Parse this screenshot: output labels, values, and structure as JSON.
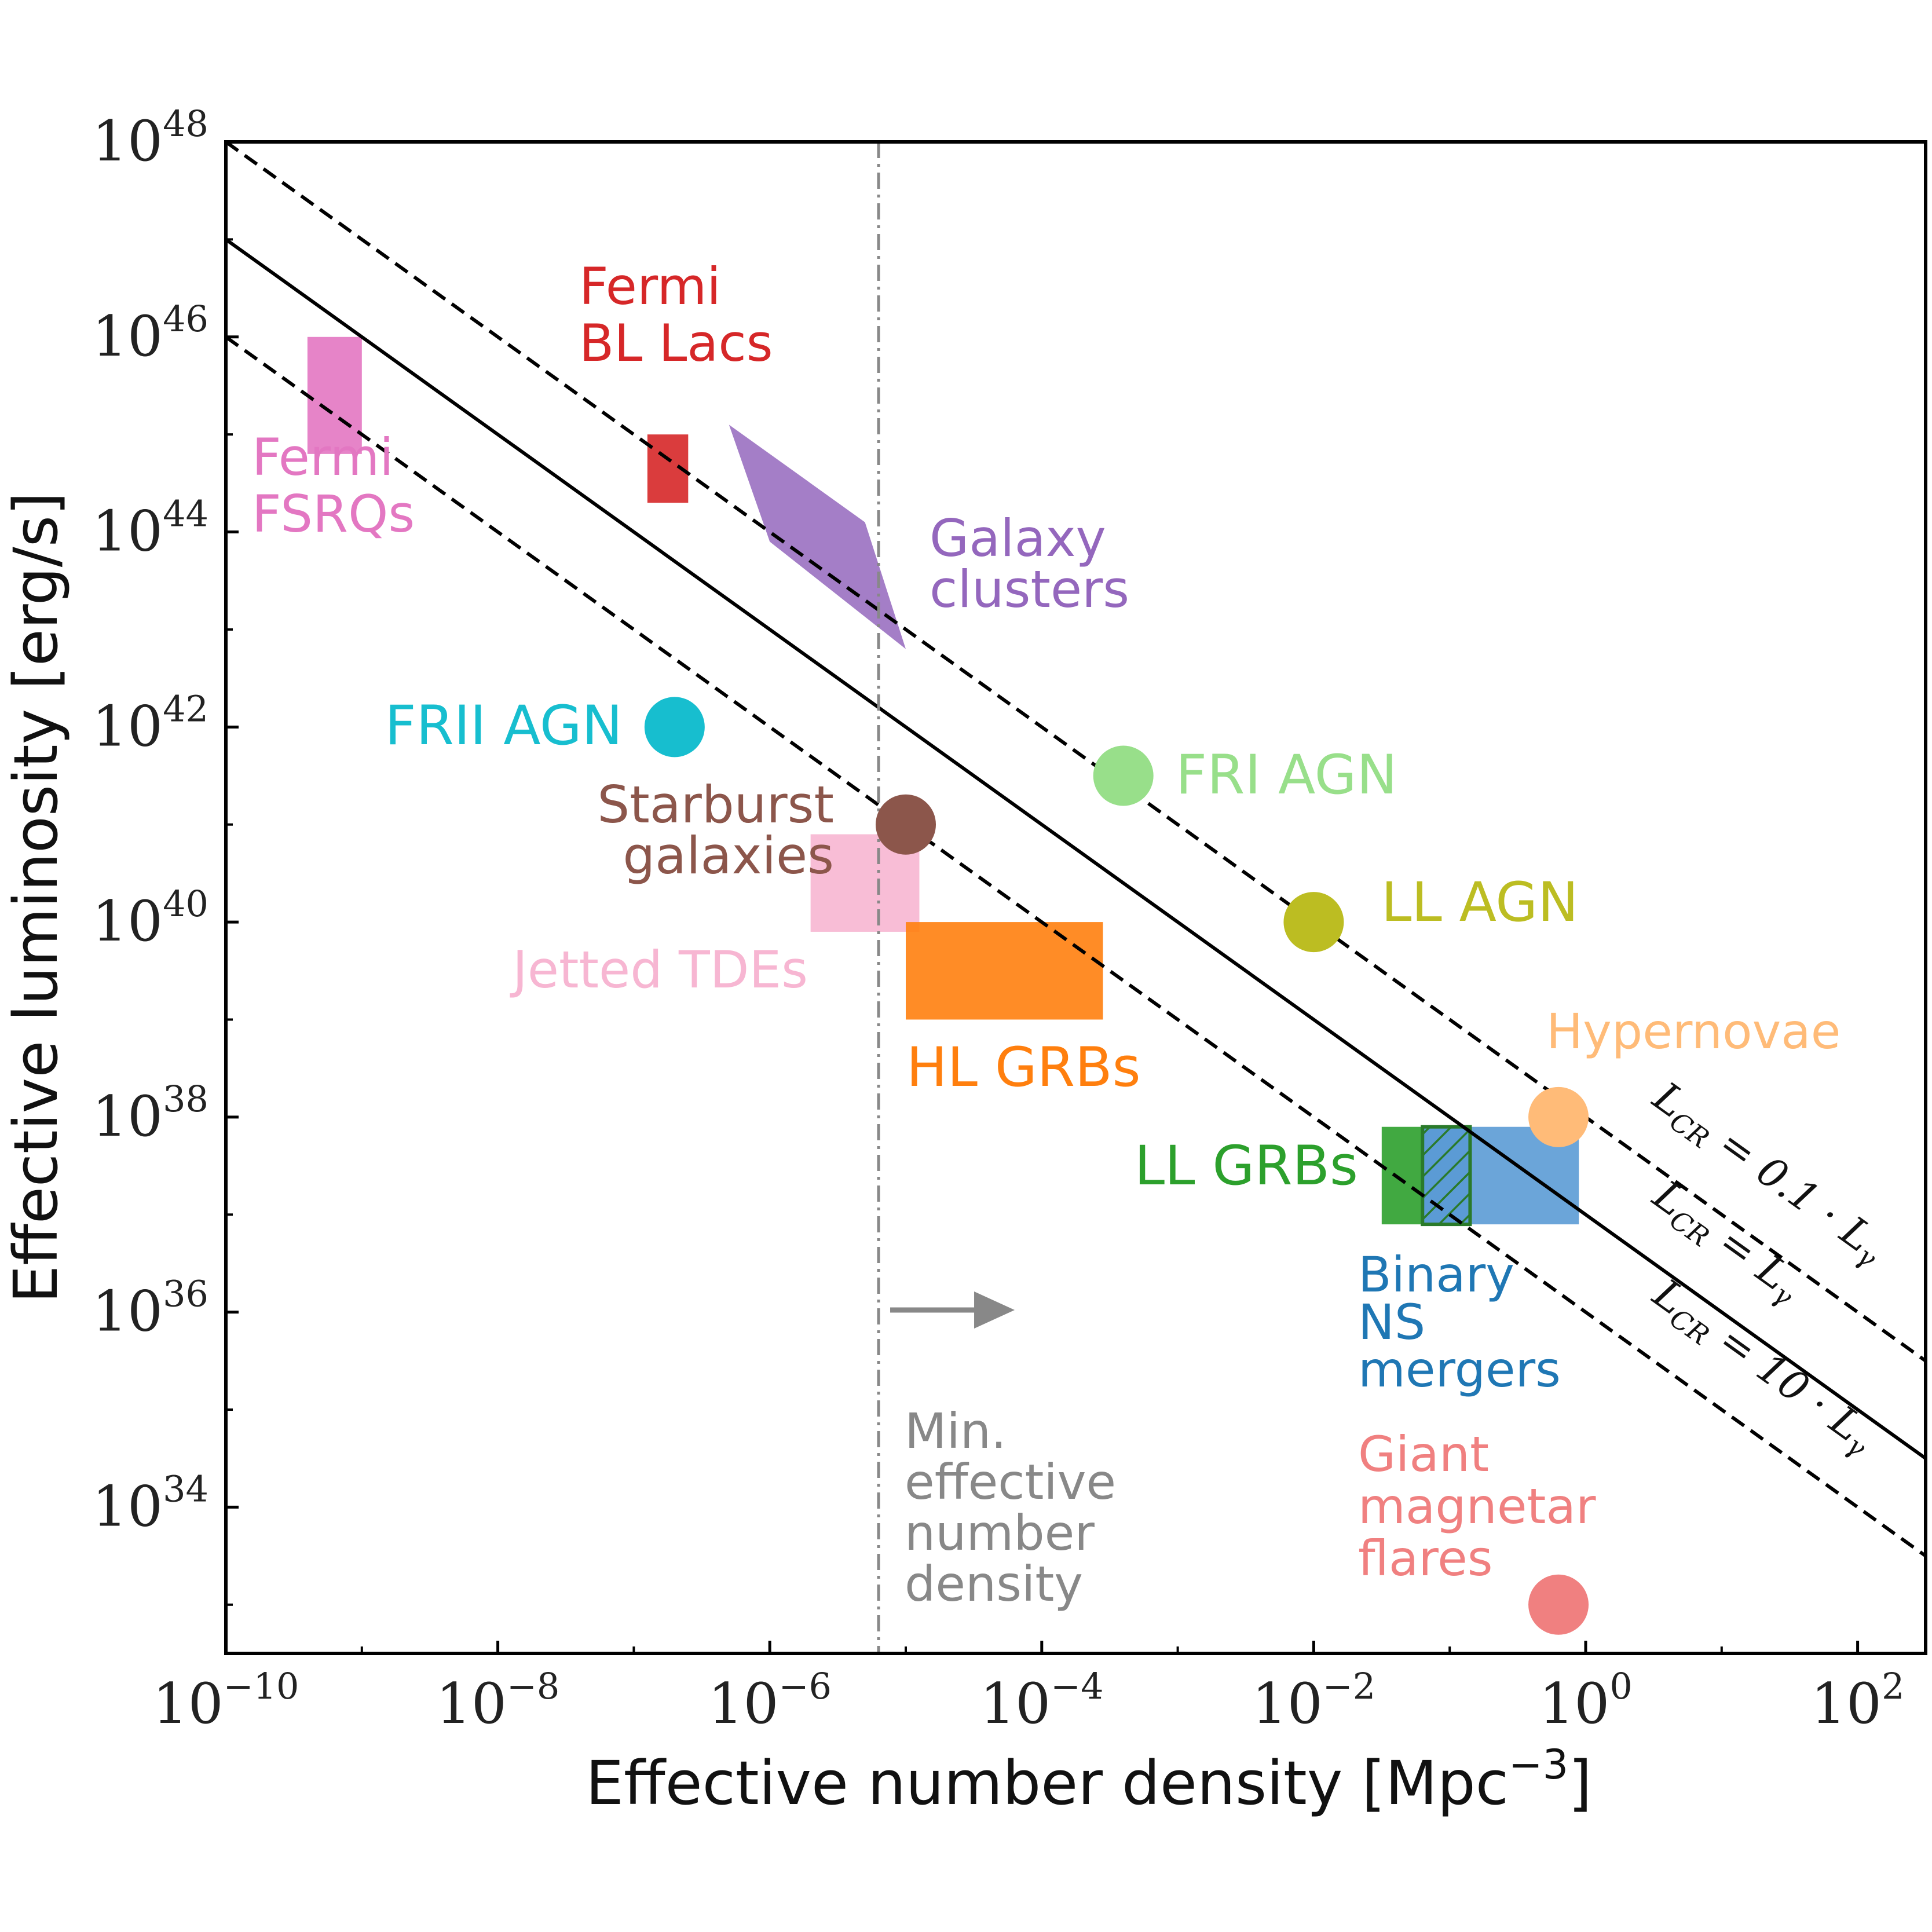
{
  "chart_data": {
    "type": "scatter",
    "xlabel": "Effective number density [Mpc",
    "xlabel_sup": "−3",
    "xlabel_end": "]",
    "ylabel": "Effective luminosity [erg/s]",
    "xscale": "log",
    "yscale": "log",
    "xlim_exp": [
      -10,
      2.5
    ],
    "ylim_exp": [
      32.5,
      48
    ],
    "x_ticks": [
      {
        "base": "10",
        "exp": "−10",
        "value": -10
      },
      {
        "base": "10",
        "exp": "−8",
        "value": -8
      },
      {
        "base": "10",
        "exp": "−6",
        "value": -6
      },
      {
        "base": "10",
        "exp": "−4",
        "value": -4
      },
      {
        "base": "10",
        "exp": "−2",
        "value": -2
      },
      {
        "base": "10",
        "exp": "0",
        "value": 0
      },
      {
        "base": "10",
        "exp": "2",
        "value": 2
      }
    ],
    "y_ticks": [
      {
        "base": "10",
        "exp": "48",
        "value": 48
      },
      {
        "base": "10",
        "exp": "46",
        "value": 46
      },
      {
        "base": "10",
        "exp": "44",
        "value": 44
      },
      {
        "base": "10",
        "exp": "42",
        "value": 42
      },
      {
        "base": "10",
        "exp": "40",
        "value": 40
      },
      {
        "base": "10",
        "exp": "38",
        "value": 38
      },
      {
        "base": "10",
        "exp": "36",
        "value": 36
      },
      {
        "base": "10",
        "exp": "34",
        "value": 34
      }
    ],
    "reference_lines": [
      {
        "label_main": "L",
        "label_sub": "CR",
        "label_rest": " = 0.1 · L",
        "label_sub2": "γ",
        "log_intercept": 38.0,
        "slope": -1,
        "style": "dashed"
      },
      {
        "label_main": "L",
        "label_sub": "CR",
        "label_rest": " = L",
        "label_sub2": "γ",
        "log_intercept": 37.0,
        "slope": -1,
        "style": "solid"
      },
      {
        "label_main": "L",
        "label_sub": "CR",
        "label_rest": " = 10 · L",
        "label_sub2": "γ",
        "log_intercept": 36.0,
        "slope": -1,
        "style": "dashed"
      }
    ],
    "min_density_line": {
      "log_x": -5.2,
      "label_lines": [
        "Min.",
        "effective",
        "number",
        "density"
      ],
      "color": "#888888"
    },
    "sources": [
      {
        "name_lines": [
          "Fermi",
          "FSRQs"
        ],
        "shape": "box",
        "color": "#e377c2",
        "log_x": [
          -9.4,
          -9.0
        ],
        "log_y": [
          44.8,
          46.0
        ]
      },
      {
        "name_lines": [
          "Fermi",
          "BL Lacs"
        ],
        "shape": "box",
        "color": "#d62728",
        "log_x": [
          -6.9,
          -6.6
        ],
        "log_y": [
          44.3,
          45.0
        ]
      },
      {
        "name_lines": [
          "Galaxy",
          "clusters"
        ],
        "shape": "parallelogram",
        "color": "#9467bd",
        "log_points": [
          [
            -6.3,
            45.1
          ],
          [
            -5.3,
            44.1
          ],
          [
            -5.0,
            42.8
          ],
          [
            -6.0,
            43.9
          ]
        ]
      },
      {
        "name_lines": [
          "FRII AGN"
        ],
        "shape": "circle",
        "color": "#17becf",
        "log_x": -6.7,
        "log_y": 42.0
      },
      {
        "name_lines": [
          "FRI AGN"
        ],
        "shape": "circle",
        "color": "#98df8a",
        "log_x": -3.4,
        "log_y": 41.5
      },
      {
        "name_lines": [
          "Starburst",
          "galaxies"
        ],
        "shape": "circle",
        "color": "#8c564b",
        "log_x": -5.0,
        "log_y": 41.0
      },
      {
        "name_lines": [
          "LL AGN"
        ],
        "shape": "circle",
        "color": "#bcbd22",
        "log_x": -2.0,
        "log_y": 40.0
      },
      {
        "name_lines": [
          "Jetted TDEs"
        ],
        "shape": "box",
        "color": "#f7b6d2",
        "log_x": [
          -5.7,
          -4.9
        ],
        "log_y": [
          39.9,
          40.9
        ]
      },
      {
        "name_lines": [
          "HL GRBs"
        ],
        "shape": "box",
        "color": "#ff7f0e",
        "log_x": [
          -5.0,
          -3.55
        ],
        "log_y": [
          39.0,
          40.0
        ]
      },
      {
        "name_lines": [
          "Hypernovae"
        ],
        "shape": "circle",
        "color": "#ffbb78",
        "log_x": -0.2,
        "log_y": 38.0
      },
      {
        "name_lines": [
          "LL GRBs"
        ],
        "shape": "box",
        "color": "#2ca02c",
        "log_x": [
          -1.5,
          -0.85
        ],
        "log_y": [
          36.9,
          37.9
        ]
      },
      {
        "name_lines": [
          "Binary",
          "NS",
          "mergers"
        ],
        "shape": "box",
        "color": "#5b9bd5",
        "log_x": [
          -1.2,
          -0.05
        ],
        "log_y": [
          36.9,
          37.9
        ]
      },
      {
        "name_lines": [
          "Giant",
          "magnetar",
          "flares"
        ],
        "shape": "circle",
        "color": "#f08080",
        "log_x": -0.2,
        "log_y": 33.0
      }
    ]
  }
}
